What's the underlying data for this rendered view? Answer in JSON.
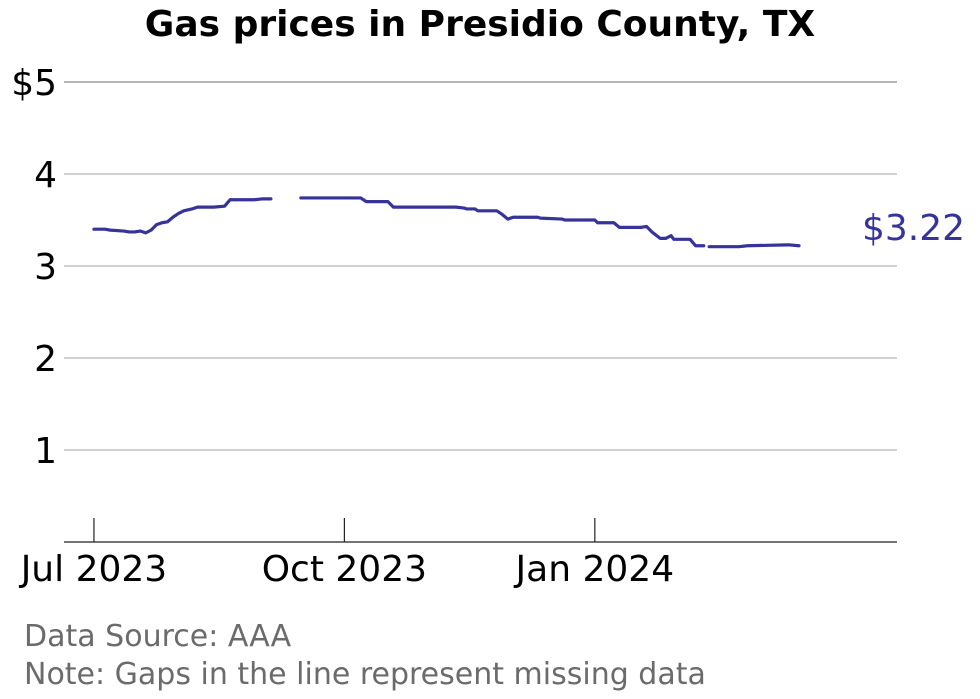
{
  "chart_data": {
    "type": "line",
    "title": "Gas prices in Presidio County, TX",
    "xlabel": "",
    "ylabel": "",
    "ylim": [
      0,
      5
    ],
    "y_ticks": [
      {
        "value": 1,
        "label": "1"
      },
      {
        "value": 2,
        "label": "2"
      },
      {
        "value": 3,
        "label": "3"
      },
      {
        "value": 4,
        "label": "4"
      },
      {
        "value": 5,
        "label": "$5"
      }
    ],
    "x_ticks": [
      {
        "date": "2023-07-01",
        "label": "Jul 2023"
      },
      {
        "date": "2023-10-01",
        "label": "Oct 2023"
      },
      {
        "date": "2024-01-01",
        "label": "Jan 2024"
      }
    ],
    "xlim": [
      "2023-06-20",
      "2024-04-21"
    ],
    "grid": true,
    "line_color": "#36339a",
    "end_label": "$3.22",
    "series": [
      {
        "segments": [
          [
            [
              "2023-07-01",
              3.4
            ],
            [
              "2023-07-05",
              3.4
            ],
            [
              "2023-07-07",
              3.39
            ],
            [
              "2023-07-12",
              3.38
            ],
            [
              "2023-07-14",
              3.37
            ],
            [
              "2023-07-16",
              3.37
            ],
            [
              "2023-07-18",
              3.38
            ],
            [
              "2023-07-20",
              3.36
            ],
            [
              "2023-07-22",
              3.39
            ],
            [
              "2023-07-24",
              3.45
            ],
            [
              "2023-07-26",
              3.47
            ],
            [
              "2023-07-28",
              3.48
            ],
            [
              "2023-07-30",
              3.53
            ],
            [
              "2023-08-01",
              3.57
            ],
            [
              "2023-08-03",
              3.6
            ],
            [
              "2023-08-06",
              3.62
            ],
            [
              "2023-08-08",
              3.64
            ],
            [
              "2023-08-14",
              3.64
            ],
            [
              "2023-08-18",
              3.65
            ],
            [
              "2023-08-20",
              3.72
            ],
            [
              "2023-08-29",
              3.72
            ],
            [
              "2023-09-01",
              3.73
            ],
            [
              "2023-09-04",
              3.73
            ]
          ],
          [
            [
              "2023-09-15",
              3.74
            ],
            [
              "2023-10-07",
              3.74
            ],
            [
              "2023-10-09",
              3.7
            ],
            [
              "2023-10-17",
              3.7
            ],
            [
              "2023-10-19",
              3.64
            ],
            [
              "2023-11-11",
              3.64
            ],
            [
              "2023-11-14",
              3.63
            ],
            [
              "2023-11-15",
              3.62
            ],
            [
              "2023-11-18",
              3.62
            ],
            [
              "2023-11-19",
              3.6
            ],
            [
              "2023-11-26",
              3.6
            ],
            [
              "2023-11-28",
              3.56
            ],
            [
              "2023-11-30",
              3.51
            ],
            [
              "2023-12-02",
              3.53
            ],
            [
              "2023-12-11",
              3.53
            ],
            [
              "2023-12-12",
              3.52
            ],
            [
              "2023-12-20",
              3.51
            ],
            [
              "2023-12-21",
              3.5
            ],
            [
              "2024-01-01",
              3.5
            ],
            [
              "2024-01-02",
              3.47
            ],
            [
              "2024-01-08",
              3.47
            ],
            [
              "2024-01-10",
              3.42
            ],
            [
              "2024-01-18",
              3.42
            ],
            [
              "2024-01-20",
              3.43
            ],
            [
              "2024-01-22",
              3.37
            ],
            [
              "2024-01-25",
              3.3
            ],
            [
              "2024-01-27",
              3.3
            ],
            [
              "2024-01-29",
              3.33
            ],
            [
              "2024-01-30",
              3.29
            ],
            [
              "2024-02-05",
              3.29
            ],
            [
              "2024-02-07",
              3.22
            ],
            [
              "2024-02-10",
              3.22
            ]
          ],
          [
            [
              "2024-02-12",
              3.21
            ],
            [
              "2024-02-23",
              3.21
            ],
            [
              "2024-02-26",
              3.22
            ],
            [
              "2024-03-12",
              3.23
            ],
            [
              "2024-03-16",
              3.22
            ]
          ]
        ]
      }
    ]
  },
  "footer": {
    "source": "Data Source: AAA",
    "note": "Note: Gaps in the line represent missing data"
  }
}
